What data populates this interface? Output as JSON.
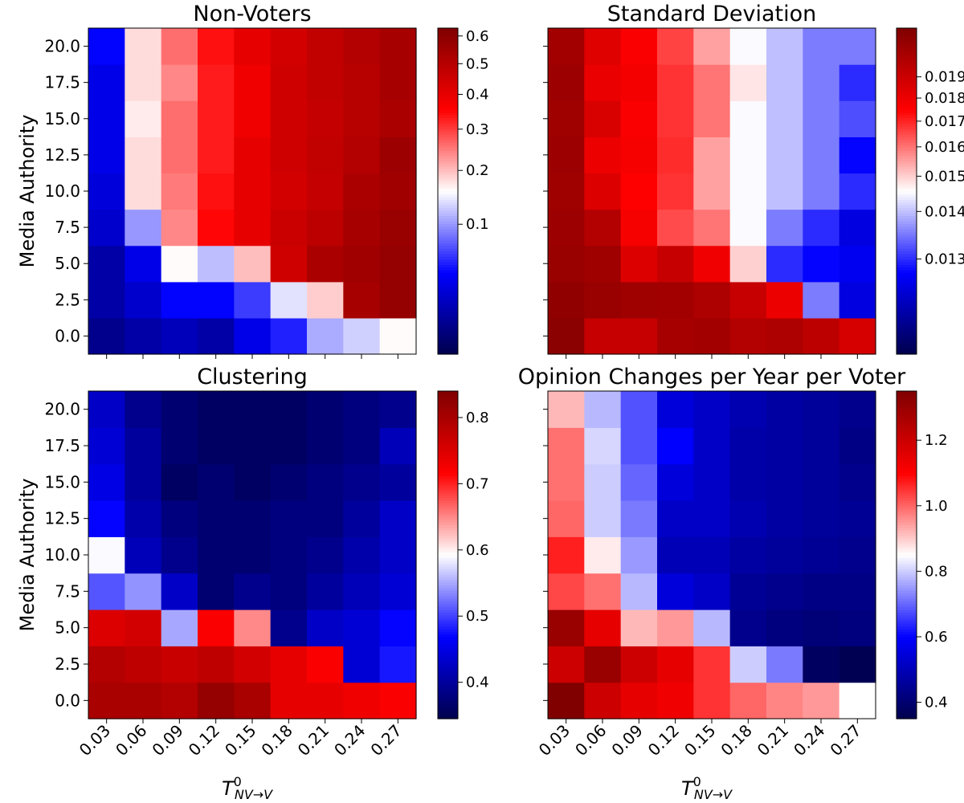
{
  "figure": {
    "xlabel_main": "T",
    "xlabel_sup": "0",
    "xlabel_sub": "NV→V"
  },
  "chart_data": [
    {
      "type": "heatmap",
      "title": "Non-Voters",
      "ylabel": "Media Authority",
      "x": [
        "0.03",
        "0.06",
        "0.09",
        "0.12",
        "0.15",
        "0.18",
        "0.21",
        "0.24",
        "0.27"
      ],
      "y": [
        "0.0",
        "2.5",
        "5.0",
        "7.5",
        "10.0",
        "12.5",
        "15.0",
        "17.5",
        "20.0"
      ],
      "values": [
        [
          0.005,
          0.01,
          0.015,
          0.01,
          0.03,
          0.05,
          0.11,
          0.13,
          0.16
        ],
        [
          0.01,
          0.02,
          0.04,
          0.04,
          0.06,
          0.14,
          0.19,
          0.54,
          0.58
        ],
        [
          0.01,
          0.03,
          0.16,
          0.12,
          0.2,
          0.45,
          0.53,
          0.55,
          0.58
        ],
        [
          0.02,
          0.1,
          0.24,
          0.35,
          0.4,
          0.46,
          0.49,
          0.54,
          0.57
        ],
        [
          0.025,
          0.18,
          0.25,
          0.34,
          0.4,
          0.44,
          0.47,
          0.53,
          0.55
        ],
        [
          0.03,
          0.18,
          0.26,
          0.33,
          0.4,
          0.45,
          0.48,
          0.51,
          0.56
        ],
        [
          0.03,
          0.17,
          0.26,
          0.33,
          0.38,
          0.45,
          0.47,
          0.5,
          0.53
        ],
        [
          0.03,
          0.18,
          0.24,
          0.33,
          0.38,
          0.45,
          0.48,
          0.5,
          0.54
        ],
        [
          0.04,
          0.18,
          0.26,
          0.34,
          0.4,
          0.44,
          0.48,
          0.51,
          0.54
        ]
      ],
      "vmin": 0.0,
      "vmax": 0.63,
      "colorbar_scale": "sqrt",
      "colorbar_ticks": [
        0.1,
        0.2,
        0.3,
        0.4,
        0.5,
        0.6
      ],
      "colorbar_labels": [
        "0.1",
        "0.2",
        "0.3",
        "0.4",
        "0.5",
        "0.6"
      ],
      "show_ylabel": true,
      "show_yticks": true,
      "show_xticks": false
    },
    {
      "type": "heatmap",
      "title": "Standard Deviation",
      "ylabel": "",
      "x": [
        "0.03",
        "0.06",
        "0.09",
        "0.12",
        "0.15",
        "0.18",
        "0.21",
        "0.24",
        "0.27"
      ],
      "y": [
        "0.0",
        "2.5",
        "5.0",
        "7.5",
        "10.0",
        "12.5",
        "15.0",
        "17.5",
        "20.0"
      ],
      "values": [
        [
          0.0212,
          0.0192,
          0.0192,
          0.0202,
          0.0204,
          0.0198,
          0.02,
          0.0195,
          0.0187
        ],
        [
          0.021,
          0.0207,
          0.0205,
          0.0204,
          0.02,
          0.0192,
          0.018,
          0.0135,
          0.0126
        ],
        [
          0.0207,
          0.0205,
          0.0185,
          0.0192,
          0.0179,
          0.015,
          0.013,
          0.0128,
          0.0127
        ],
        [
          0.0206,
          0.0198,
          0.0177,
          0.0165,
          0.016,
          0.0145,
          0.0135,
          0.013,
          0.0126
        ],
        [
          0.0205,
          0.0185,
          0.0175,
          0.0168,
          0.0155,
          0.0145,
          0.014,
          0.0135,
          0.013
        ],
        [
          0.0206,
          0.018,
          0.0177,
          0.0169,
          0.0155,
          0.0145,
          0.014,
          0.0135,
          0.0128
        ],
        [
          0.0205,
          0.0186,
          0.0176,
          0.0168,
          0.016,
          0.0145,
          0.014,
          0.0135,
          0.0132
        ],
        [
          0.0206,
          0.0181,
          0.0178,
          0.0168,
          0.016,
          0.0148,
          0.014,
          0.0135,
          0.013
        ],
        [
          0.0204,
          0.0184,
          0.0176,
          0.0166,
          0.0155,
          0.0145,
          0.014,
          0.0135,
          0.0135
        ]
      ],
      "vmin": 0.0122,
      "vmax": 0.0216,
      "colorbar_scale": "sqrt",
      "colorbar_ticks": [
        0.013,
        0.014,
        0.015,
        0.016,
        0.017,
        0.018,
        0.019
      ],
      "colorbar_labels": [
        "0.013",
        "0.014",
        "0.015",
        "0.016",
        "0.017",
        "0.018",
        "0.019"
      ],
      "show_ylabel": false,
      "show_yticks": false,
      "show_xticks": false
    },
    {
      "type": "heatmap",
      "title": "Clustering",
      "ylabel": "Media Authority",
      "x": [
        "0.03",
        "0.06",
        "0.09",
        "0.12",
        "0.15",
        "0.18",
        "0.21",
        "0.24",
        "0.27"
      ],
      "y": [
        "0.0",
        "2.5",
        "5.0",
        "7.5",
        "10.0",
        "12.5",
        "15.0",
        "17.5",
        "20.0"
      ],
      "values": [
        [
          0.8,
          0.8,
          0.79,
          0.82,
          0.8,
          0.74,
          0.74,
          0.73,
          0.72
        ],
        [
          0.79,
          0.78,
          0.77,
          0.78,
          0.76,
          0.74,
          0.72,
          0.44,
          0.48
        ],
        [
          0.75,
          0.76,
          0.55,
          0.72,
          0.65,
          0.39,
          0.43,
          0.44,
          0.47
        ],
        [
          0.51,
          0.54,
          0.43,
          0.37,
          0.39,
          0.38,
          0.4,
          0.42,
          0.44
        ],
        [
          0.59,
          0.42,
          0.39,
          0.37,
          0.37,
          0.38,
          0.39,
          0.41,
          0.43
        ],
        [
          0.47,
          0.41,
          0.38,
          0.37,
          0.37,
          0.38,
          0.38,
          0.4,
          0.43
        ],
        [
          0.45,
          0.4,
          0.36,
          0.37,
          0.36,
          0.37,
          0.38,
          0.39,
          0.4
        ],
        [
          0.44,
          0.4,
          0.37,
          0.36,
          0.36,
          0.36,
          0.37,
          0.38,
          0.42
        ],
        [
          0.43,
          0.39,
          0.37,
          0.36,
          0.36,
          0.36,
          0.37,
          0.38,
          0.39
        ]
      ],
      "vmin": 0.345,
      "vmax": 0.84,
      "colorbar_scale": "linear",
      "colorbar_ticks": [
        0.4,
        0.5,
        0.6,
        0.7,
        0.8
      ],
      "colorbar_labels": [
        "0.4",
        "0.5",
        "0.6",
        "0.7",
        "0.8"
      ],
      "show_ylabel": true,
      "show_yticks": true,
      "show_xticks": true
    },
    {
      "type": "heatmap",
      "title": "Opinion Changes per Year per Voter",
      "ylabel": "",
      "x": [
        "0.03",
        "0.06",
        "0.09",
        "0.12",
        "0.15",
        "0.18",
        "0.21",
        "0.24",
        "0.27"
      ],
      "y": [
        "0.0",
        "2.5",
        "5.0",
        "7.5",
        "10.0",
        "12.5",
        "15.0",
        "17.5",
        "20.0"
      ],
      "values": [
        [
          1.35,
          1.2,
          1.15,
          1.13,
          1.05,
          1.0,
          0.97,
          0.95,
          0.85
        ],
        [
          1.2,
          1.3,
          1.2,
          1.15,
          1.05,
          0.8,
          0.72,
          0.38,
          0.36
        ],
        [
          1.3,
          1.15,
          0.92,
          0.95,
          0.78,
          0.44,
          0.42,
          0.41,
          0.42
        ],
        [
          1.03,
          0.99,
          0.78,
          0.55,
          0.52,
          0.45,
          0.44,
          0.43,
          0.43
        ],
        [
          1.07,
          0.87,
          0.75,
          0.5,
          0.5,
          0.47,
          0.46,
          0.45,
          0.44
        ],
        [
          1.0,
          0.8,
          0.72,
          0.52,
          0.52,
          0.49,
          0.47,
          0.46,
          0.45
        ],
        [
          0.99,
          0.8,
          0.7,
          0.55,
          0.52,
          0.48,
          0.47,
          0.46,
          0.44
        ],
        [
          0.99,
          0.81,
          0.68,
          0.6,
          0.52,
          0.48,
          0.47,
          0.46,
          0.43
        ],
        [
          0.92,
          0.78,
          0.68,
          0.55,
          0.52,
          0.49,
          0.47,
          0.46,
          0.44
        ]
      ],
      "vmin": 0.35,
      "vmax": 1.35,
      "colorbar_scale": "linear",
      "colorbar_ticks": [
        0.4,
        0.6,
        0.8,
        1.0,
        1.2
      ],
      "colorbar_labels": [
        "0.4",
        "0.6",
        "0.8",
        "1.0",
        "1.2"
      ],
      "show_ylabel": false,
      "show_yticks": false,
      "show_xticks": true
    }
  ]
}
